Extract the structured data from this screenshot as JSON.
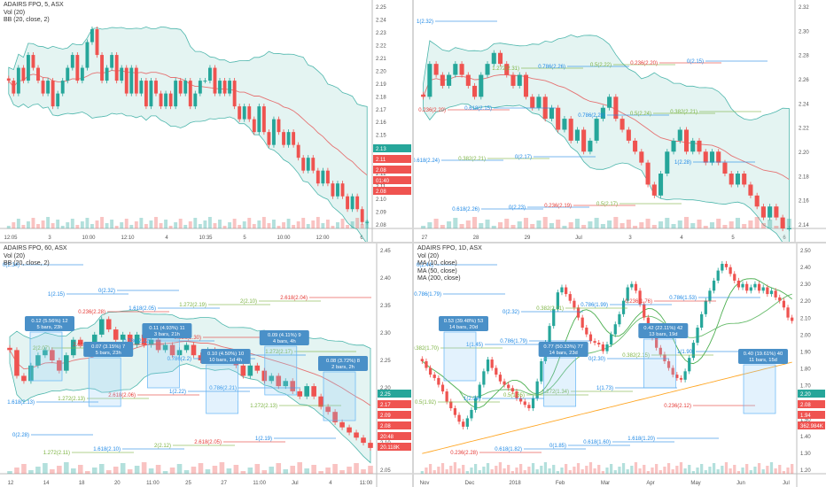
{
  "colors": {
    "up": "#26a69a",
    "down": "#ef5350",
    "band": "#b2dfdb",
    "ma": "#e57373"
  },
  "panes": [
    {
      "id": "tl",
      "title": "ADAIRS FPO, 5, ASX",
      "subtitle": [
        "Vol (20)",
        "BB (20, close, 2)"
      ],
      "y_ticks": [
        "2.25",
        "2.24",
        "2.23",
        "2.22",
        "2.21",
        "2.20",
        "2.19",
        "2.18",
        "2.17",
        "2.16",
        "2.15",
        "2.14",
        "2.13",
        "2.12",
        "2.11",
        "2.10",
        "2.09",
        "2.08"
      ],
      "x_ticks": [
        "12:05",
        "3",
        "10:00",
        "12:10",
        "4",
        "10:35",
        "5",
        "10:00",
        "12:00",
        "6"
      ],
      "price_tags": [
        "2.13",
        "2.11",
        "2.08",
        "01:40",
        "2.08"
      ],
      "chart_data": {
        "type": "candlestick",
        "ylim": [
          2.075,
          2.25
        ],
        "bollinger": "BB (20, close, 2)",
        "close": [
          2.19,
          2.18,
          2.2,
          2.19,
          2.21,
          2.2,
          2.19,
          2.18,
          2.19,
          2.17,
          2.18,
          2.19,
          2.2,
          2.21,
          2.19,
          2.2,
          2.22,
          2.23,
          2.21,
          2.19,
          2.2,
          2.21,
          2.19,
          2.2,
          2.18,
          2.2,
          2.18,
          2.19,
          2.17,
          2.19,
          2.18,
          2.17,
          2.18,
          2.17,
          2.19,
          2.18,
          2.19,
          2.17,
          2.18,
          2.19,
          2.19,
          2.2,
          2.18,
          2.19,
          2.18,
          2.19,
          2.17,
          2.16,
          2.17,
          2.16,
          2.15,
          2.17,
          2.15,
          2.14,
          2.16,
          2.15,
          2.14,
          2.15,
          2.14,
          2.13,
          2.12,
          2.13,
          2.12,
          2.11,
          2.12,
          2.11,
          2.1,
          2.11,
          2.1,
          2.09,
          2.1,
          2.09,
          2.08,
          2.08
        ]
      }
    },
    {
      "id": "tr",
      "title": "",
      "subtitle": [],
      "y_ticks": [
        "2.32",
        "2.30",
        "2.28",
        "2.26",
        "2.24",
        "2.22",
        "2.20",
        "2.18",
        "2.16",
        "2.14"
      ],
      "x_ticks": [
        "27",
        "28",
        "29",
        "Jul",
        "3",
        "4",
        "5",
        "6"
      ],
      "price_tags": [],
      "fib_labels": [
        "1(2.32)",
        "1.272(2.31)",
        "0.786(2.28)",
        "1(2.28)",
        "0.618(2.26)",
        "0.786(2.26)",
        "0.5(2.24)",
        "0.618(2.24)",
        "0(2.23)",
        "0.5(2.22)",
        "0.382(2.21)",
        "0.382(2.21)",
        "0.236(2.19)",
        "0.236(2.20)",
        "0.236(2.20)",
        "0(2.17)",
        "0.5(2.17)",
        "0(2.15)",
        "0.618(2.15)"
      ],
      "chart_data": {
        "type": "candlestick",
        "ylim": [
          2.13,
          2.335
        ],
        "bollinger": "BB (20, close, 2)",
        "close": [
          2.25,
          2.28,
          2.27,
          2.26,
          2.27,
          2.28,
          2.27,
          2.26,
          2.25,
          2.27,
          2.28,
          2.29,
          2.28,
          2.27,
          2.26,
          2.27,
          2.25,
          2.24,
          2.25,
          2.23,
          2.24,
          2.22,
          2.23,
          2.21,
          2.22,
          2.2,
          2.21,
          2.23,
          2.24,
          2.25,
          2.23,
          2.22,
          2.21,
          2.2,
          2.19,
          2.17,
          2.16,
          2.18,
          2.2,
          2.21,
          2.22,
          2.2,
          2.21,
          2.2,
          2.19,
          2.2,
          2.19,
          2.18,
          2.17,
          2.18,
          2.17,
          2.16,
          2.15,
          2.14,
          2.15,
          2.14,
          2.13,
          2.13
        ]
      }
    },
    {
      "id": "bl",
      "title": "ADAIRS FPO, 60, ASX",
      "subtitle": [
        "Vol (20)",
        "BB (20, close, 2)"
      ],
      "y_ticks": [
        "2.45",
        "2.40",
        "2.35",
        "2.30",
        "2.25",
        "2.20",
        "2.15",
        "2.10",
        "2.05"
      ],
      "x_ticks": [
        "12",
        "14",
        "18",
        "20",
        "11:00",
        "25",
        "27",
        "11:00",
        "Jul",
        "4",
        "11:00"
      ],
      "price_tags": [
        "2.25",
        "2.17",
        "2.09",
        "2.08",
        "20:48",
        "20.118K"
      ],
      "boxes": [
        {
          "l1": "0.12 (5.56%) 12",
          "l2": "5 bars, 23h"
        },
        {
          "l1": "0.07 (3.15%) 7",
          "l2": "5 bars, 23h"
        },
        {
          "l1": "0.11 (4.93%) 11",
          "l2": "3 bars, 21h"
        },
        {
          "l1": "0.10 (4.50%) 10",
          "l2": "10 bars, 1d 4h"
        },
        {
          "l1": "0.09 (4.11%) 9",
          "l2": "4 bars, 4h"
        },
        {
          "l1": "0.08 (3.72%) 8",
          "l2": "2 bars, 2h"
        }
      ],
      "fib_labels": [
        "0(2.34)",
        "0.236(2.28)",
        "0.786(2.2)",
        "1.272(2.13)",
        "1.272(2.11)",
        "1.618(2.05)",
        "1.618(2.16)",
        "1.618(2.13)",
        "1.618(2.10)",
        "1.272(2.19)",
        "1.272(2.17)",
        "1.272(2.13)",
        "2(2.12)",
        "2(2.10)",
        "2(2.07)",
        "2.618(2.06)",
        "2.618(2.05)",
        "2.618(2.04)",
        "2.618(2.02)",
        "1(2.22)",
        "1(2.19)",
        "1(2.15)",
        "0.786(2.22)",
        "0.786(2.21)",
        "0(2.28)",
        "0(2.32)",
        "0.236(2.30)"
      ],
      "chart_data": {
        "type": "candlestick",
        "ylim": [
          2.03,
          2.47
        ],
        "bollinger": "BB (20, close, 2)",
        "close": [
          2.27,
          2.22,
          2.21,
          2.24,
          2.26,
          2.27,
          2.25,
          2.23,
          2.26,
          2.29,
          2.28,
          2.27,
          2.3,
          2.33,
          2.31,
          2.29,
          2.3,
          2.28,
          2.3,
          2.28,
          2.29,
          2.27,
          2.28,
          2.26,
          2.27,
          2.28,
          2.26,
          2.25,
          2.27,
          2.26,
          2.25,
          2.26,
          2.24,
          2.22,
          2.24,
          2.23,
          2.21,
          2.22,
          2.2,
          2.21,
          2.19,
          2.18,
          2.2,
          2.18,
          2.16,
          2.15,
          2.13,
          2.12,
          2.11,
          2.1,
          2.09,
          2.08
        ]
      }
    },
    {
      "id": "br",
      "title": "ADAIRS FPO, 1D, ASX",
      "subtitle": [
        "Vol (20)",
        "MA (10, close)",
        "MA (50, close)",
        "MA (200, close)"
      ],
      "y_ticks": [
        "2.50",
        "2.40",
        "2.30",
        "2.20",
        "2.10",
        "2.00",
        "1.90",
        "1.80",
        "1.70",
        "1.60",
        "1.50",
        "1.40",
        "1.30",
        "1.20"
      ],
      "x_ticks": [
        "Nov",
        "Dec",
        "2018",
        "Feb",
        "Mar",
        "Apr",
        "May",
        "Jun",
        "Jul"
      ],
      "price_tags": [
        "2.20",
        "2.08",
        "1.94",
        "362.984K"
      ],
      "boxes": [
        {
          "l1": "0.53 (39.48%) 53",
          "l2": "14 bars, 20d"
        },
        {
          "l1": "0.77 (50.33%) 77",
          "l2": "14 bars, 23d"
        },
        {
          "l1": "0.42 (22.11%) 42",
          "l2": "13 bars, 19d"
        },
        {
          "l1": "0.40 (19.61%) 40",
          "l2": "11 bars, 15d"
        }
      ],
      "fib_labels": [
        "0(2.44)",
        "0(2.32)",
        "0(2.30)",
        "0.236(2.12)",
        "0.236(2.28)",
        "0.382(2.01)",
        "0.382(2.15)",
        "0.5(1.92)",
        "0.618(1.82)",
        "0.786(1.99)",
        "1(1.90)",
        "1(2.04)",
        "0(1.85)",
        "0.236(1.76)",
        "0.382(1.70)",
        "0.5(1.65)",
        "0.618(1.60)",
        "0.786(1.53)",
        "1(1.45)",
        "1.272(1.34)",
        "1.618(1.20)",
        "0.786(1.79)",
        "0.786(1.79)",
        "1(1.73)"
      ],
      "chart_data": {
        "type": "candlestick",
        "ylim": [
          1.17,
          2.52
        ],
        "ma": [
          "MA (10, close)",
          "MA (50, close)",
          "MA (200, close)"
        ],
        "close": [
          1.84,
          1.8,
          1.76,
          1.74,
          1.7,
          1.66,
          1.6,
          1.56,
          1.52,
          1.48,
          1.45,
          1.5,
          1.55,
          1.62,
          1.7,
          1.78,
          1.85,
          1.8,
          1.76,
          1.72,
          1.7,
          1.68,
          1.66,
          1.62,
          1.6,
          1.58,
          1.56,
          1.62,
          1.72,
          1.84,
          1.95,
          2.05,
          2.15,
          2.25,
          2.28,
          2.24,
          2.2,
          2.16,
          2.1,
          2.04,
          2.0,
          1.96,
          1.95,
          1.94,
          1.9,
          1.94,
          2.0,
          2.06,
          2.12,
          2.2,
          2.28,
          2.3,
          2.26,
          2.18,
          2.1,
          2.04,
          1.98,
          1.92,
          1.88,
          1.84,
          1.8,
          1.76,
          1.74,
          1.73,
          1.78,
          1.86,
          1.95,
          2.04,
          2.12,
          2.2,
          2.26,
          2.32,
          2.38,
          2.42,
          2.4,
          2.36,
          2.32,
          2.28,
          2.3,
          2.26,
          2.28,
          2.3,
          2.26,
          2.28,
          2.24,
          2.26,
          2.22,
          2.2,
          2.16,
          2.1,
          2.08
        ]
      }
    }
  ]
}
